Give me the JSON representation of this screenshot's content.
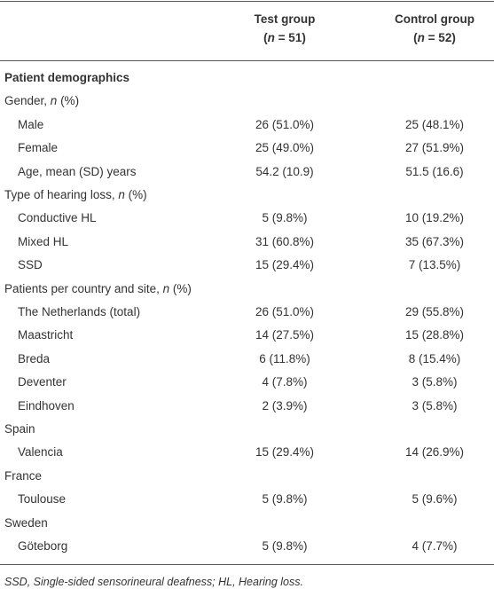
{
  "header": {
    "columns": [
      {
        "title": "Test group",
        "subtitle": [
          "(",
          "n",
          " = 51)"
        ]
      },
      {
        "title": "Control group",
        "subtitle": [
          "(",
          "n",
          " = 52)"
        ]
      }
    ]
  },
  "table": {
    "sections": [
      {
        "title": "Patient demographics",
        "groups": [
          {
            "label": [
              "Gender, ",
              "n",
              " (%)"
            ],
            "items": [
              {
                "label": "Male",
                "values": [
                  "26 (51.0%)",
                  "25 (48.1%)"
                ]
              },
              {
                "label": "Female",
                "values": [
                  "25 (49.0%)",
                  "27 (51.9%)"
                ]
              },
              {
                "label": "Age, mean (SD) years",
                "values": [
                  "54.2 (10.9)",
                  "51.5 (16.6)"
                ]
              }
            ]
          },
          {
            "label": [
              "Type of hearing loss, ",
              "n",
              " (%)"
            ],
            "items": [
              {
                "label": "Conductive HL",
                "values": [
                  "5 (9.8%)",
                  "10 (19.2%)"
                ]
              },
              {
                "label": "Mixed HL",
                "values": [
                  "31 (60.8%)",
                  "35 (67.3%)"
                ]
              },
              {
                "label": "SSD",
                "values": [
                  "15 (29.4%)",
                  "7 (13.5%)"
                ]
              }
            ]
          },
          {
            "label": [
              "Patients per country and site, ",
              "n",
              " (%)"
            ],
            "items": [
              {
                "label": "The Netherlands (total)",
                "values": [
                  "26 (51.0%)",
                  "29 (55.8%)"
                ]
              },
              {
                "label": "Maastricht",
                "values": [
                  "14 (27.5%)",
                  "15 (28.8%)"
                ]
              },
              {
                "label": "Breda",
                "values": [
                  "6 (11.8%)",
                  "8 (15.4%)"
                ]
              },
              {
                "label": "Deventer",
                "values": [
                  "4 (7.8%)",
                  "3 (5.8%)"
                ]
              },
              {
                "label": "Eindhoven",
                "values": [
                  "2 (3.9%)",
                  "3 (5.8%)"
                ]
              }
            ]
          },
          {
            "label": "Spain",
            "items": [
              {
                "label": "Valencia",
                "values": [
                  "15 (29.4%)",
                  "14 (26.9%)"
                ]
              }
            ]
          },
          {
            "label": "France",
            "items": [
              {
                "label": "Toulouse",
                "values": [
                  "5 (9.8%)",
                  "5 (9.6%)"
                ]
              }
            ]
          },
          {
            "label": "Sweden",
            "items": [
              {
                "label": "Göteborg",
                "values": [
                  "5 (9.8%)",
                  "4 (7.7%)"
                ]
              }
            ]
          }
        ]
      }
    ]
  },
  "footnote": "SSD, Single-sided sensorineural deafness; HL, Hearing loss."
}
